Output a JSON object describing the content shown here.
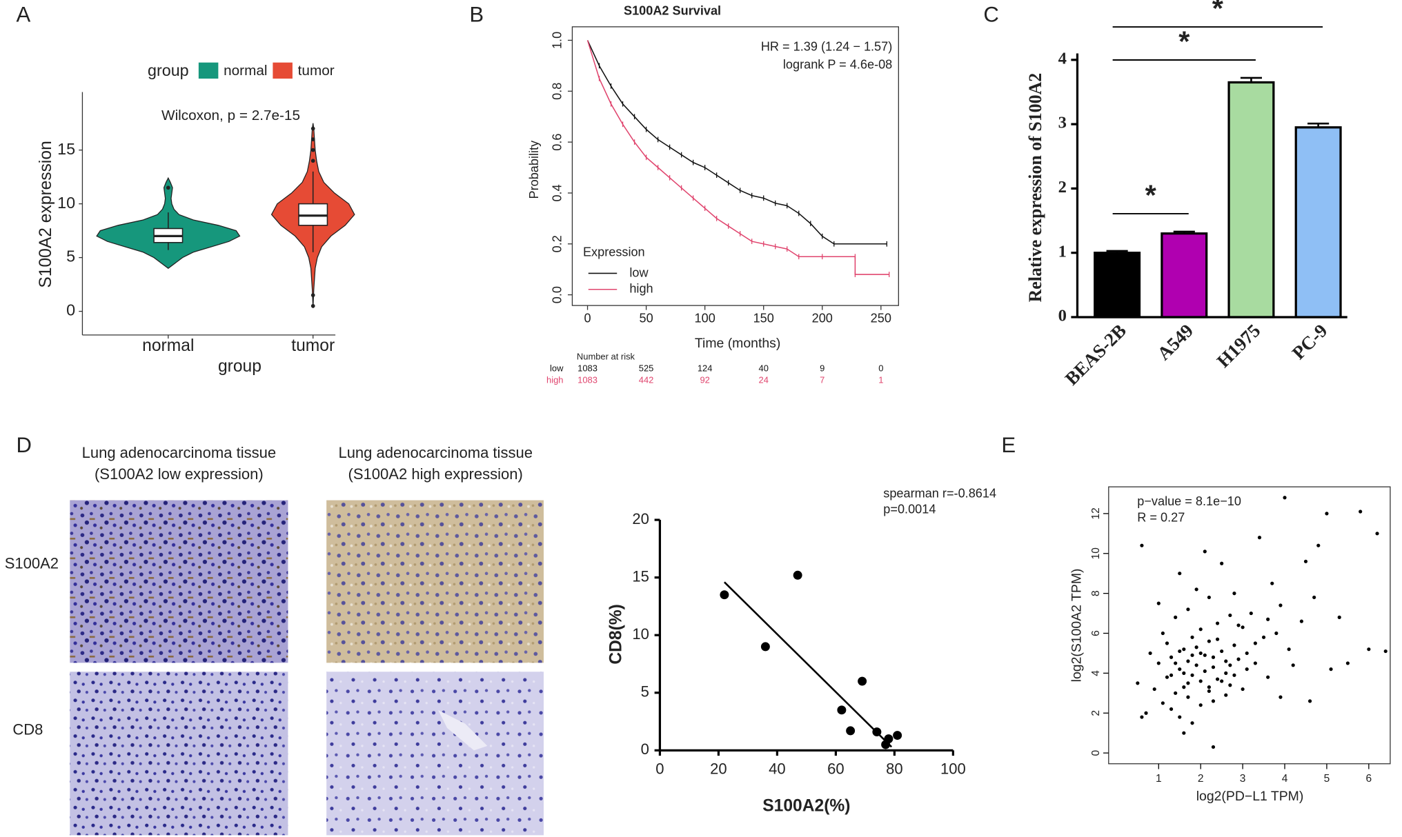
{
  "chart_data": [
    {
      "type": "violin",
      "panel": "A",
      "legend_title": "group",
      "annotation": "Wilcoxon, p = 2.7e-15",
      "xlabel": "group",
      "ylabel": "S100A2 expression",
      "categories": [
        "normal",
        "tumor"
      ],
      "series": [
        {
          "name": "normal",
          "color": "#16977c",
          "q1": 6.4,
          "median": 7,
          "q3": 7.7,
          "whisker_low": 5.7,
          "whisker_high": 9.2,
          "outliers": [
            11.5
          ],
          "density": {
            "y": [
              4,
              5,
              5.5,
              6,
              6.5,
              7,
              7.5,
              8,
              8.5,
              9,
              9.5,
              10,
              10.5,
              11,
              11.5,
              12,
              12.4
            ],
            "width": [
              0,
              0.2,
              0.35,
              0.6,
              0.85,
              1,
              0.95,
              0.7,
              0.35,
              0.15,
              0.08,
              0.05,
              0.04,
              0.05,
              0.06,
              0.03,
              0
            ]
          }
        },
        {
          "name": "tumor",
          "color": "#e64b35",
          "q1": 8,
          "median": 8.9,
          "q3": 10,
          "whisker_low": 5.5,
          "whisker_high": 13,
          "outliers": [
            0.5,
            1.5,
            14,
            15,
            16,
            17
          ],
          "density": {
            "y": [
              0.3,
              2,
              4,
              5,
              6,
              7,
              8,
              9,
              10,
              11,
              12,
              13,
              14,
              15,
              16,
              17,
              17.5
            ],
            "width": [
              0,
              0.01,
              0.03,
              0.06,
              0.12,
              0.25,
              0.45,
              0.58,
              0.5,
              0.3,
              0.15,
              0.08,
              0.05,
              0.03,
              0.02,
              0.01,
              0
            ]
          }
        }
      ],
      "ylim": [
        -2.2,
        20.4
      ],
      "yticks": [
        0,
        5,
        10,
        15
      ]
    },
    {
      "type": "line",
      "panel": "B",
      "title": "S100A2 Survival",
      "xlabel": "Time (months)",
      "ylabel": "Probability",
      "annotations": [
        "HR = 1.39 (1.24 − 1.57)",
        "logrank P = 4.6e-08"
      ],
      "legend_title": "Expression",
      "series": [
        {
          "name": "low",
          "color": "#111111",
          "x": [
            0,
            10,
            20,
            30,
            40,
            50,
            60,
            70,
            80,
            90,
            100,
            110,
            120,
            130,
            140,
            150,
            160,
            170,
            180,
            190,
            200,
            210,
            255
          ],
          "values": [
            1,
            0.9,
            0.82,
            0.75,
            0.7,
            0.65,
            0.61,
            0.58,
            0.55,
            0.52,
            0.5,
            0.47,
            0.44,
            0.41,
            0.39,
            0.38,
            0.36,
            0.35,
            0.32,
            0.28,
            0.23,
            0.2,
            0.2
          ]
        },
        {
          "name": "high",
          "color": "#e0456e",
          "x": [
            0,
            10,
            20,
            30,
            40,
            50,
            60,
            70,
            80,
            90,
            100,
            110,
            120,
            130,
            140,
            150,
            160,
            170,
            180,
            200,
            228,
            228,
            257
          ],
          "values": [
            1,
            0.85,
            0.75,
            0.67,
            0.6,
            0.54,
            0.5,
            0.46,
            0.42,
            0.38,
            0.34,
            0.3,
            0.27,
            0.24,
            0.21,
            0.2,
            0.19,
            0.18,
            0.15,
            0.15,
            0.15,
            0.08,
            0.08
          ]
        }
      ],
      "risk_table": {
        "title": "Number at risk",
        "rows": [
          {
            "name": "low",
            "counts": [
              1083,
              525,
              124,
              40,
              9,
              0
            ]
          },
          {
            "name": "high",
            "counts": [
              1083,
              442,
              92,
              24,
              7,
              1
            ]
          }
        ]
      },
      "xlim": [
        -13,
        265
      ],
      "xticks": [
        0,
        50,
        100,
        150,
        200,
        250
      ],
      "ylim": [
        -0.042,
        1.053
      ],
      "yticks": [
        {
          "value": 0,
          "label": "0.0"
        },
        0.2,
        0.4,
        0.6,
        0.8,
        {
          "value": 1,
          "label": "1.0"
        }
      ]
    },
    {
      "type": "bar",
      "panel": "C",
      "ylabel": "Relative expression of S100A2",
      "categories": [
        "BEAS-2B",
        "A549",
        "H1975",
        "PC-9"
      ],
      "values": [
        1.0,
        1.3,
        3.65,
        2.95
      ],
      "errors": [
        0.03,
        0.03,
        0.07,
        0.06
      ],
      "colors": [
        "#000000",
        "#b000b0",
        "#a8dba0",
        "#8fbff5"
      ],
      "significance": [
        {
          "pair": [
            "BEAS-2B",
            "A549"
          ],
          "label": "*"
        },
        {
          "pair": [
            "BEAS-2B",
            "H1975"
          ],
          "label": "*"
        },
        {
          "pair": [
            "BEAS-2B",
            "PC-9"
          ],
          "label": "*"
        }
      ],
      "ylim": [
        0,
        4.1
      ],
      "yticks": [
        0,
        1,
        2,
        3,
        4
      ]
    },
    {
      "type": "scatter",
      "xlabel": "S100A2(%)",
      "ylabel": "CD8(%)",
      "annotations": [
        "spearman r=-0.8614",
        "p=0.0014"
      ],
      "x": [
        22,
        36,
        47,
        62,
        65,
        69,
        74,
        77,
        78,
        81
      ],
      "values": [
        13.5,
        9,
        15.2,
        3.5,
        1.7,
        6,
        1.6,
        0.5,
        1,
        1.3
      ],
      "fit_line": {
        "x": [
          22,
          79
        ],
        "values": [
          14.6,
          0.3
        ]
      },
      "xlim": [
        0,
        100
      ],
      "xticks": [
        0,
        20,
        40,
        60,
        80,
        100
      ],
      "ylim": [
        0,
        20
      ],
      "yticks": [
        0,
        5,
        10,
        15,
        20
      ]
    },
    {
      "type": "scatter",
      "panel": "E",
      "xlabel": "log2(PD−L1 TPM)",
      "ylabel": "log2(S100A2 TPM)",
      "annotations": [
        "p−value = 8.1e−10",
        "R = 0.27"
      ],
      "x": [
        0.5,
        0.6,
        0.7,
        0.8,
        0.9,
        1.0,
        1.0,
        1.1,
        1.1,
        1.2,
        1.2,
        1.3,
        1.3,
        1.4,
        1.4,
        1.5,
        1.5,
        1.5,
        1.6,
        1.6,
        1.7,
        1.7,
        1.7,
        1.8,
        1.8,
        1.8,
        1.9,
        1.9,
        2.0,
        2.0,
        2.0,
        2.1,
        2.1,
        2.2,
        2.2,
        2.2,
        2.3,
        2.3,
        2.4,
        2.4,
        2.5,
        2.5,
        2.6,
        2.6,
        2.7,
        2.7,
        2.8,
        2.8,
        2.9,
        3.0,
        3.0,
        3.1,
        3.2,
        3.3,
        3.4,
        3.5,
        3.6,
        3.7,
        3.8,
        3.9,
        4.0,
        4.1,
        4.2,
        4.4,
        4.5,
        4.7,
        4.8,
        5.0,
        5.1,
        5.3,
        5.5,
        5.8,
        6.0,
        6.2,
        6.4,
        0.6,
        2.3,
        1.6,
        3.9,
        4.6,
        1.3,
        1.5,
        1.7,
        1.9,
        2.1,
        2.3,
        2.5,
        2.7,
        1.8,
        2.2,
        2.4,
        2.6,
        2.0,
        1.6,
        2.8,
        3.1,
        3.3,
        1.4,
        2.9,
        3.6
      ],
      "values": [
        3.5,
        10.4,
        2.0,
        5.0,
        3.2,
        4.5,
        7.5,
        2.5,
        6.0,
        3.8,
        5.5,
        2.2,
        4.8,
        3.0,
        6.8,
        4.2,
        1.8,
        9.0,
        5.2,
        3.3,
        4.6,
        2.8,
        7.2,
        3.9,
        5.8,
        1.5,
        4.4,
        8.2,
        3.6,
        6.2,
        2.4,
        4.9,
        10.1,
        3.1,
        5.6,
        7.8,
        4.3,
        2.6,
        6.5,
        3.7,
        5.1,
        9.5,
        4.0,
        2.9,
        6.9,
        3.4,
        5.4,
        8.0,
        4.7,
        3.2,
        6.3,
        5.0,
        7.0,
        4.5,
        10.8,
        5.8,
        3.8,
        8.5,
        6.0,
        7.4,
        12.8,
        5.2,
        4.4,
        6.6,
        9.6,
        7.8,
        10.4,
        12.0,
        4.2,
        6.8,
        4.5,
        12.1,
        5.2,
        11.0,
        5.1,
        1.8,
        0.3,
        1.0,
        2.8,
        2.6,
        3.9,
        5.1,
        3.5,
        5.3,
        4.1,
        4.8,
        3.6,
        4.4,
        4.9,
        3.3,
        5.7,
        4.6,
        5.0,
        4.0,
        3.9,
        4.2,
        5.5,
        4.5,
        6.4,
        6.7
      ],
      "xlim": [
        -0.19,
        6.51
      ],
      "xticks": [
        1,
        2,
        3,
        4,
        5,
        6
      ],
      "ylim": [
        -0.54,
        13.34
      ],
      "yticks": [
        0,
        2,
        4,
        6,
        8,
        10,
        12
      ]
    }
  ],
  "panel_d": {
    "label": "D",
    "column_titles": [
      [
        "Lung adenocarcinoma tissue",
        "(S100A2 low expression)"
      ],
      [
        "Lung adenocarcinoma tissue",
        "(S100A2 high expression)"
      ]
    ],
    "row_labels": [
      "S100A2",
      "CD8"
    ]
  }
}
